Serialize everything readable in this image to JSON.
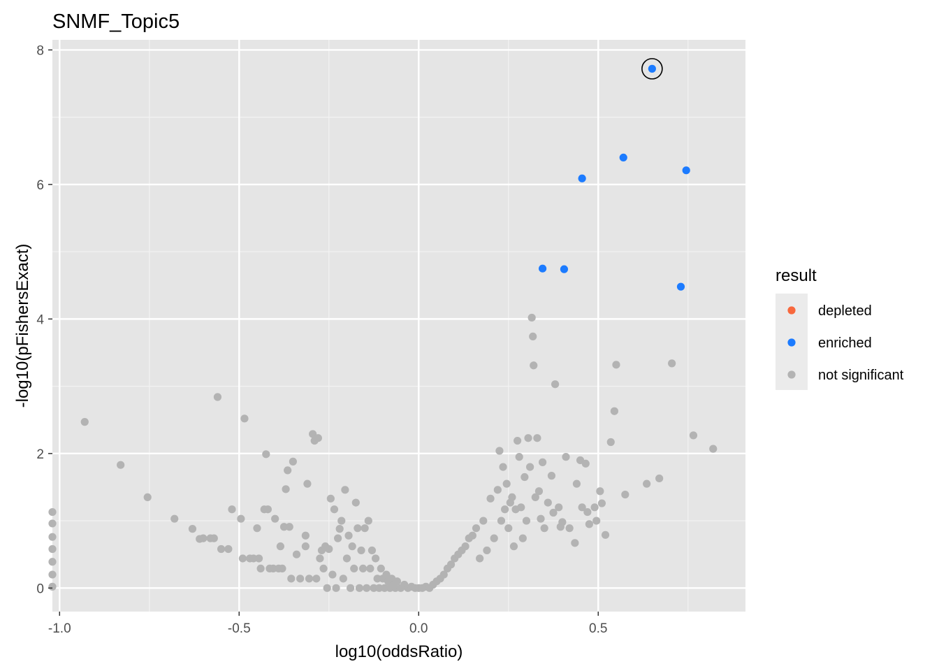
{
  "chart_data": {
    "type": "scatter",
    "title": "SNMF_Topic5",
    "xlabel": "log10(oddsRatio)",
    "ylabel": "-log10(pFishersExact)",
    "xlim": [
      -1.02,
      0.91
    ],
    "ylim": [
      -0.35,
      8.15
    ],
    "x_ticks": [
      {
        "value": -1.0,
        "label": "-1.0"
      },
      {
        "value": -0.5,
        "label": "-0.5"
      },
      {
        "value": 0.0,
        "label": "0.0"
      },
      {
        "value": 0.5,
        "label": "0.5"
      }
    ],
    "y_ticks": [
      {
        "value": 0,
        "label": "0"
      },
      {
        "value": 2,
        "label": "2"
      },
      {
        "value": 4,
        "label": "4"
      },
      {
        "value": 6,
        "label": "6"
      },
      {
        "value": 8,
        "label": "8"
      }
    ],
    "grid": true,
    "background": "#e5e5e5",
    "legend": {
      "title": "result",
      "position": "right",
      "entries": [
        {
          "label": "depleted",
          "color": "#f8683d"
        },
        {
          "label": "enriched",
          "color": "#1c7bff"
        },
        {
          "label": "not significant",
          "color": "#b3b3b3"
        }
      ]
    },
    "highlighted_point": {
      "x": 0.65,
      "y": 7.72
    },
    "series": [
      {
        "result": "enriched",
        "color": "#1c7bff",
        "points": [
          [
            0.65,
            7.72
          ],
          [
            0.57,
            6.4
          ],
          [
            0.745,
            6.21
          ],
          [
            0.455,
            6.09
          ],
          [
            0.345,
            4.75
          ],
          [
            0.405,
            4.74
          ],
          [
            0.73,
            4.48
          ]
        ]
      },
      {
        "result": "depleted",
        "color": "#f8683d",
        "points": []
      },
      {
        "result": "not significant",
        "color": "#b3b3b3",
        "points": [
          [
            -0.93,
            2.47
          ],
          [
            -0.83,
            1.83
          ],
          [
            -0.755,
            1.35
          ],
          [
            -0.68,
            1.03
          ],
          [
            -0.63,
            0.88
          ],
          [
            -0.61,
            0.73
          ],
          [
            -0.6,
            0.74
          ],
          [
            -0.58,
            0.74
          ],
          [
            -0.57,
            0.74
          ],
          [
            -0.56,
            2.84
          ],
          [
            -0.55,
            0.58
          ],
          [
            -0.53,
            0.58
          ],
          [
            -0.52,
            1.17
          ],
          [
            -0.495,
            1.03
          ],
          [
            -0.49,
            0.44
          ],
          [
            -0.485,
            2.52
          ],
          [
            -0.47,
            0.44
          ],
          [
            -0.46,
            0.44
          ],
          [
            -0.45,
            0.89
          ],
          [
            -0.445,
            0.44
          ],
          [
            -0.44,
            0.29
          ],
          [
            -0.43,
            1.17
          ],
          [
            -0.425,
            1.99
          ],
          [
            -0.42,
            1.17
          ],
          [
            -0.415,
            0.29
          ],
          [
            -0.405,
            0.29
          ],
          [
            -0.4,
            1.03
          ],
          [
            -0.39,
            0.29
          ],
          [
            -0.385,
            0.62
          ],
          [
            -0.38,
            0.29
          ],
          [
            -0.375,
            0.91
          ],
          [
            -0.37,
            1.47
          ],
          [
            -0.365,
            1.75
          ],
          [
            -0.36,
            0.91
          ],
          [
            -0.355,
            0.14
          ],
          [
            -0.35,
            1.88
          ],
          [
            -0.34,
            0.5
          ],
          [
            -0.33,
            0.14
          ],
          [
            -0.315,
            0.62
          ],
          [
            -0.315,
            0.78
          ],
          [
            -0.31,
            1.55
          ],
          [
            -0.305,
            0.14
          ],
          [
            -0.295,
            2.29
          ],
          [
            -0.29,
            2.19
          ],
          [
            -0.285,
            0.14
          ],
          [
            -0.28,
            2.23
          ],
          [
            -0.275,
            0.44
          ],
          [
            -0.27,
            0.56
          ],
          [
            -0.265,
            0.29
          ],
          [
            -0.26,
            0.62
          ],
          [
            -0.255,
            0.0
          ],
          [
            -0.25,
            0.58
          ],
          [
            -0.245,
            1.33
          ],
          [
            -0.24,
            0.2
          ],
          [
            -0.235,
            1.17
          ],
          [
            -0.23,
            0.0
          ],
          [
            -0.225,
            0.74
          ],
          [
            -0.22,
            0.88
          ],
          [
            -0.215,
            1.0
          ],
          [
            -0.21,
            0.14
          ],
          [
            -0.205,
            1.46
          ],
          [
            -0.2,
            0.44
          ],
          [
            -0.195,
            0.78
          ],
          [
            -0.19,
            0.0
          ],
          [
            -0.185,
            0.62
          ],
          [
            -0.18,
            0.29
          ],
          [
            -0.175,
            1.27
          ],
          [
            -0.17,
            0.89
          ],
          [
            -0.165,
            0.0
          ],
          [
            -0.16,
            0.56
          ],
          [
            -0.155,
            0.29
          ],
          [
            -0.15,
            0.89
          ],
          [
            -0.145,
            0.0
          ],
          [
            -0.14,
            1.0
          ],
          [
            -0.135,
            0.29
          ],
          [
            -0.13,
            0.56
          ],
          [
            -0.125,
            0.0
          ],
          [
            -0.12,
            0.44
          ],
          [
            -0.115,
            0.14
          ],
          [
            -0.11,
            0.0
          ],
          [
            -0.105,
            0.29
          ],
          [
            -0.1,
            0.14
          ],
          [
            -0.095,
            0.0
          ],
          [
            -0.09,
            0.2
          ],
          [
            -0.085,
            0.1
          ],
          [
            -0.08,
            0.0
          ],
          [
            -0.075,
            0.14
          ],
          [
            -0.07,
            0.05
          ],
          [
            -0.065,
            0.0
          ],
          [
            -0.06,
            0.1
          ],
          [
            -0.05,
            0.0
          ],
          [
            -0.04,
            0.05
          ],
          [
            -0.03,
            0.0
          ],
          [
            -0.02,
            0.02
          ],
          [
            -0.01,
            0.0
          ],
          [
            0.0,
            0.0
          ],
          [
            0.01,
            0.0
          ],
          [
            0.02,
            0.02
          ],
          [
            0.03,
            0.0
          ],
          [
            0.04,
            0.05
          ],
          [
            0.05,
            0.1
          ],
          [
            0.06,
            0.14
          ],
          [
            0.07,
            0.2
          ],
          [
            0.08,
            0.29
          ],
          [
            0.09,
            0.35
          ],
          [
            0.1,
            0.44
          ],
          [
            0.11,
            0.5
          ],
          [
            0.12,
            0.56
          ],
          [
            0.13,
            0.62
          ],
          [
            0.14,
            0.74
          ],
          [
            0.15,
            0.78
          ],
          [
            0.16,
            0.89
          ],
          [
            0.17,
            0.44
          ],
          [
            0.18,
            1.0
          ],
          [
            0.19,
            0.56
          ],
          [
            0.2,
            1.33
          ],
          [
            0.21,
            0.74
          ],
          [
            0.22,
            1.46
          ],
          [
            0.225,
            2.04
          ],
          [
            0.23,
            1.0
          ],
          [
            0.235,
            1.8
          ],
          [
            0.24,
            1.17
          ],
          [
            0.245,
            1.55
          ],
          [
            0.25,
            0.89
          ],
          [
            0.255,
            1.27
          ],
          [
            0.26,
            1.35
          ],
          [
            0.265,
            0.62
          ],
          [
            0.27,
            1.17
          ],
          [
            0.275,
            2.19
          ],
          [
            0.28,
            1.95
          ],
          [
            0.285,
            1.2
          ],
          [
            0.29,
            0.74
          ],
          [
            0.295,
            1.65
          ],
          [
            0.3,
            1.0
          ],
          [
            0.305,
            2.23
          ],
          [
            0.31,
            1.8
          ],
          [
            0.315,
            4.02
          ],
          [
            0.318,
            3.74
          ],
          [
            0.32,
            3.31
          ],
          [
            0.325,
            1.35
          ],
          [
            0.33,
            2.23
          ],
          [
            0.335,
            1.44
          ],
          [
            0.34,
            1.03
          ],
          [
            0.345,
            1.87
          ],
          [
            0.35,
            0.89
          ],
          [
            0.36,
            1.27
          ],
          [
            0.37,
            1.67
          ],
          [
            0.375,
            1.12
          ],
          [
            0.38,
            3.03
          ],
          [
            0.39,
            1.2
          ],
          [
            0.395,
            0.91
          ],
          [
            0.4,
            0.98
          ],
          [
            0.41,
            1.95
          ],
          [
            0.42,
            0.89
          ],
          [
            0.435,
            0.67
          ],
          [
            0.44,
            1.55
          ],
          [
            0.45,
            1.9
          ],
          [
            0.455,
            1.2
          ],
          [
            0.465,
            1.85
          ],
          [
            0.47,
            1.13
          ],
          [
            0.475,
            0.95
          ],
          [
            0.49,
            1.2
          ],
          [
            0.495,
            1.0
          ],
          [
            0.505,
            1.44
          ],
          [
            0.51,
            1.26
          ],
          [
            0.52,
            0.79
          ],
          [
            0.535,
            2.17
          ],
          [
            0.545,
            2.63
          ],
          [
            0.55,
            3.32
          ],
          [
            0.575,
            1.39
          ],
          [
            0.635,
            1.55
          ],
          [
            0.67,
            1.63
          ],
          [
            0.705,
            3.34
          ],
          [
            0.765,
            2.27
          ],
          [
            0.82,
            2.07
          ],
          [
            -1.02,
            1.13
          ],
          [
            -1.02,
            0.96
          ],
          [
            -1.02,
            0.76
          ],
          [
            -1.02,
            0.58
          ],
          [
            -1.02,
            0.39
          ],
          [
            -1.02,
            0.2
          ],
          [
            -1.02,
            0.02
          ]
        ]
      }
    ]
  }
}
